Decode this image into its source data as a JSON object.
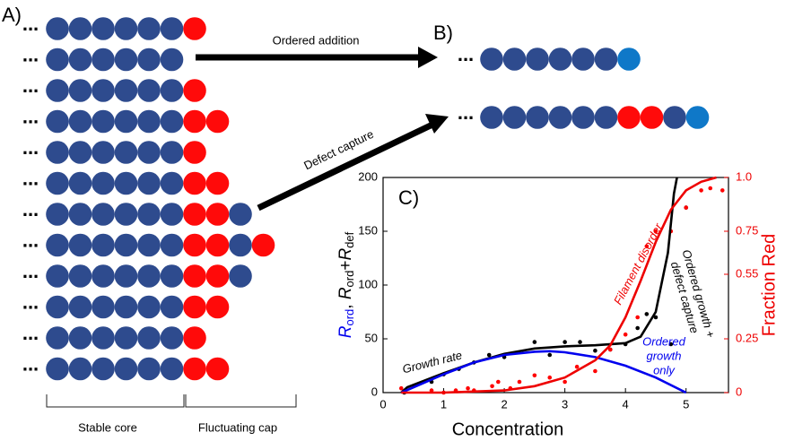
{
  "panel_a": {
    "label": "A)",
    "ellipsis": "...",
    "colors": {
      "b": "#2e4b8e",
      "r": "#ff0a0a",
      "l": "#0f78c8"
    },
    "rows": [
      "bbbbbbr",
      "bbbbbb",
      "bbbbbbr",
      "bbbbbbrr",
      "bbbbbbr",
      "bbbbbbrr",
      "bbbbbbrrb",
      "bbbbbbrrbr",
      "bbbbbbrrb",
      "bbbbbbrr",
      "bbbbbbr",
      "bbbbbbrr"
    ],
    "core_label": "Stable core",
    "cap_label": "Fluctuating cap"
  },
  "panel_b": {
    "label": "B)",
    "rows": [
      "bbbbbbl",
      "bbbbbbrrbl"
    ]
  },
  "arrows": [
    "Ordered addition",
    "Defect capture"
  ],
  "chart_data": {
    "type": "scatter",
    "label": "C)",
    "xlabel": "Concentration",
    "ylabel": [
      "R",
      "ord",
      ", ",
      "R",
      "ord",
      "+",
      "R",
      "def"
    ],
    "y2label": "Fraction Red",
    "xlim": [
      0,
      5.7
    ],
    "xticks": [
      0,
      1,
      2,
      3,
      4,
      5
    ],
    "ylim": [
      0,
      200
    ],
    "yticks": [
      0,
      50,
      100,
      150,
      200
    ],
    "y2lim": [
      0,
      1
    ],
    "y2ticks": [
      0,
      0.25,
      0.55,
      0.75,
      {
        "value": 1,
        "label": "1.0"
      }
    ],
    "series": [
      {
        "mark": "point",
        "color": "#000000",
        "axis": "y",
        "x": [
          0.35,
          0.8,
          1.0,
          1.25,
          1.5,
          1.75,
          2.0,
          2.5,
          2.75,
          3.0,
          3.25,
          3.5,
          3.75,
          4.0,
          4.2,
          4.35,
          4.5,
          4.75,
          5.0
        ],
        "values": [
          0,
          10,
          17,
          22,
          28,
          35,
          33,
          47,
          35,
          47,
          47,
          39,
          40,
          45,
          60,
          73,
          70,
          45,
          172
        ]
      },
      {
        "mark": "point",
        "color": "#ff0000",
        "axis": "y2",
        "x": [
          0.3,
          0.5,
          0.8,
          1.0,
          1.2,
          1.4,
          1.5,
          1.8,
          1.9,
          2.1,
          2.25,
          2.5,
          2.75,
          3.0,
          3.2,
          3.5,
          3.75,
          4.0,
          4.2,
          4.35,
          4.5,
          4.75,
          5.0,
          5.25,
          5.4,
          5.6
        ],
        "values": [
          0.02,
          0.03,
          0.01,
          0,
          0.01,
          0.02,
          0.01,
          0.03,
          0.05,
          0.02,
          0.05,
          0.08,
          0.07,
          0.05,
          0.12,
          0.1,
          0.2,
          0.27,
          0.35,
          0.68,
          0.75,
          0.75,
          0.86,
          0.94,
          0.95,
          0.94
        ]
      },
      {
        "mark": "line",
        "color": "#000000",
        "axis": "y",
        "x": [
          0.3,
          0.4,
          1.0,
          1.5,
          2.0,
          2.5,
          3.0,
          3.5,
          4.0,
          4.25,
          4.5,
          4.7,
          4.8,
          4.85
        ],
        "values": [
          0,
          5,
          18,
          28,
          36,
          41,
          43,
          44,
          46,
          52,
          75,
          130,
          185,
          200
        ]
      },
      {
        "mark": "line",
        "color": "#0000ee",
        "axis": "y",
        "x": [
          0.3,
          1.0,
          1.5,
          2.0,
          2.5,
          2.75,
          3.0,
          3.5,
          4.0,
          4.5,
          5.0
        ],
        "values": [
          0,
          17,
          28,
          35,
          38,
          38.5,
          37.5,
          33,
          25,
          14,
          0
        ]
      },
      {
        "mark": "line",
        "color": "#ee0000",
        "axis": "y2",
        "x": [
          0.3,
          1.0,
          2.0,
          2.5,
          3.0,
          3.5,
          3.75,
          4.0,
          4.25,
          4.5,
          4.75,
          5.0,
          5.25,
          5.5
        ],
        "values": [
          0,
          0,
          0.01,
          0.03,
          0.07,
          0.15,
          0.22,
          0.35,
          0.52,
          0.7,
          0.85,
          0.94,
          0.98,
          1
        ]
      }
    ],
    "annotations": [
      {
        "lines": [
          "Growth rate"
        ],
        "color": "#000000"
      },
      {
        "lines": [
          "Filament disorder"
        ],
        "color": "#ee0000"
      },
      {
        "lines": [
          "Ordered growth +",
          "defect capture"
        ],
        "color": "#000000"
      },
      {
        "lines": [
          "Ordered",
          "growth",
          "only"
        ],
        "color": "#0000ee"
      }
    ]
  }
}
